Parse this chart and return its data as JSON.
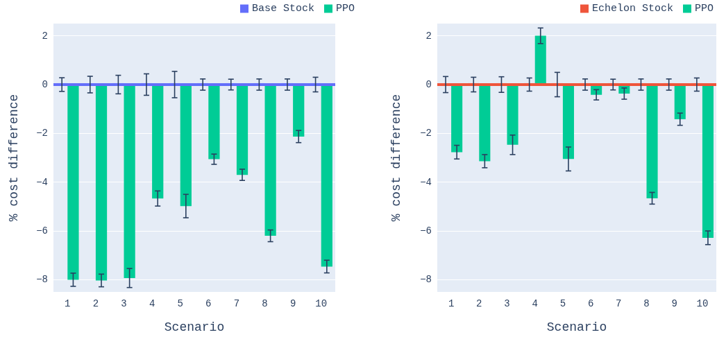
{
  "chart_data": [
    {
      "type": "bar",
      "xlabel": "Scenario",
      "ylabel": "% cost difference",
      "categories": [
        "1",
        "2",
        "3",
        "4",
        "5",
        "6",
        "7",
        "8",
        "9",
        "10"
      ],
      "series": [
        {
          "name": "Base Stock",
          "color": "#636efa",
          "values": [
            0,
            0,
            0,
            0,
            0,
            0,
            0,
            0,
            0,
            0
          ],
          "errors": [
            0.28,
            0.34,
            0.38,
            0.44,
            0.54,
            0.23,
            0.22,
            0.23,
            0.23,
            0.3
          ]
        },
        {
          "name": "PPO",
          "color": "#00cc96",
          "values": [
            -8.0,
            -8.03,
            -7.93,
            -4.67,
            -4.98,
            -3.06,
            -3.7,
            -6.2,
            -2.13,
            -7.46
          ],
          "errors": [
            0.27,
            0.26,
            0.39,
            0.31,
            0.48,
            0.21,
            0.23,
            0.24,
            0.25,
            0.26
          ]
        }
      ],
      "ylim": [
        -8.5,
        2.5
      ],
      "yticks": [
        -8,
        -6,
        -4,
        -2,
        0,
        2
      ],
      "grid": "y",
      "legend": "top right",
      "ref_lines": [
        {
          "axis": "y",
          "value": 0,
          "color": "#636efa"
        }
      ]
    },
    {
      "type": "bar",
      "xlabel": "Scenario",
      "ylabel": "% cost difference",
      "categories": [
        "1",
        "2",
        "3",
        "4",
        "5",
        "6",
        "7",
        "8",
        "9",
        "10"
      ],
      "series": [
        {
          "name": "Echelon Stock",
          "color": "#ef553b",
          "values": [
            0,
            0,
            0,
            0,
            0,
            0,
            0,
            0,
            0,
            0
          ],
          "errors": [
            0.33,
            0.3,
            0.32,
            0.27,
            0.5,
            0.23,
            0.22,
            0.23,
            0.23,
            0.27
          ]
        },
        {
          "name": "PPO",
          "color": "#00cc96",
          "values": [
            -2.77,
            -3.14,
            -2.47,
            2.0,
            -3.05,
            -0.42,
            -0.37,
            -4.66,
            -1.42,
            -6.28
          ],
          "errors": [
            0.28,
            0.27,
            0.4,
            0.32,
            0.49,
            0.21,
            0.23,
            0.24,
            0.25,
            0.28
          ]
        }
      ],
      "ylim": [
        -8.5,
        2.5
      ],
      "yticks": [
        -8,
        -6,
        -4,
        -2,
        0,
        2
      ],
      "grid": "y",
      "legend": "top right",
      "ref_lines": [
        {
          "axis": "y",
          "value": 0,
          "color": "#ef553b"
        }
      ]
    }
  ]
}
